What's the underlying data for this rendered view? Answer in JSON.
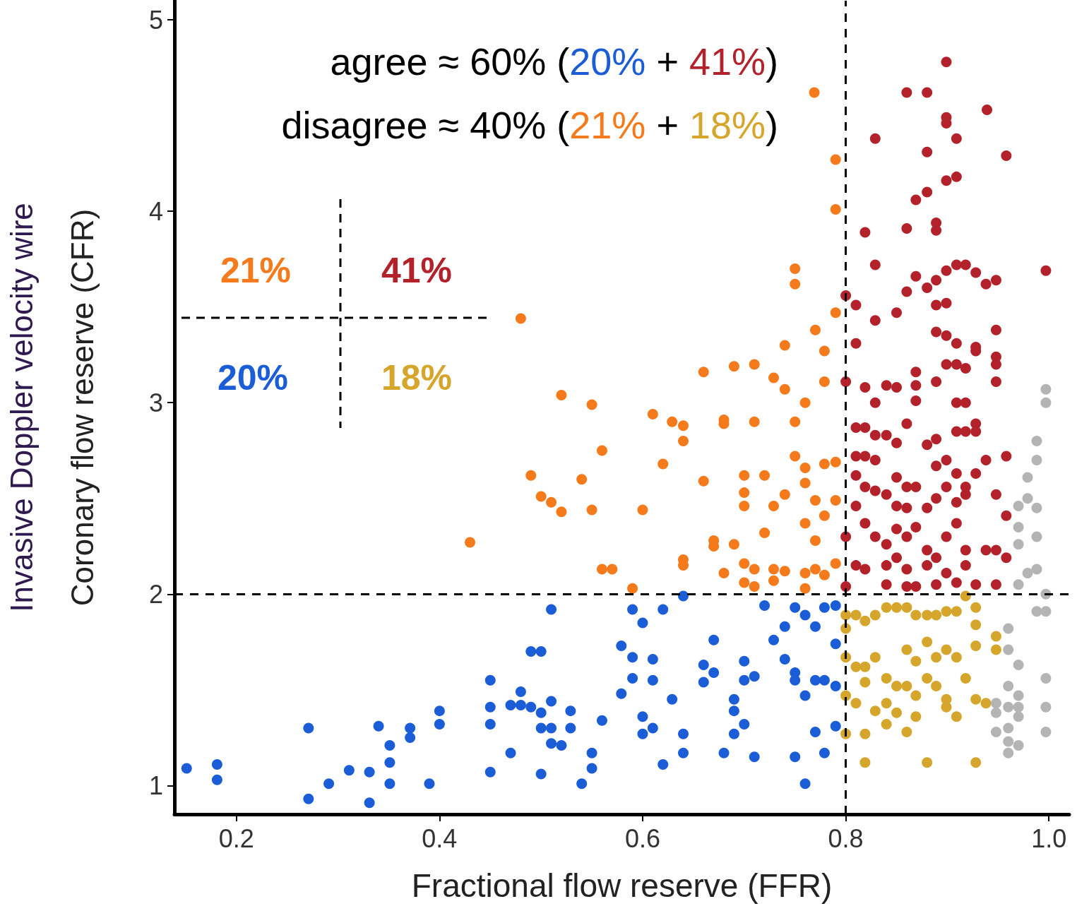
{
  "chart_data": {
    "type": "scatter",
    "xlabel": "Fractional flow reserve (FFR)",
    "ylabel": "Invasive Doppler velocity wire\nCoronary flow reserve (CFR)",
    "xlim": [
      0.139,
      1.02
    ],
    "ylim": [
      0.85,
      5.1
    ],
    "xticks": [
      0.2,
      0.4,
      0.6,
      {
        "value": 1,
        "label": "1.0"
      },
      0.8
    ],
    "yticks": [
      1,
      2,
      3,
      4,
      5
    ],
    "grid": false,
    "marker": "circle",
    "ref_lines": [
      {
        "axis": "x",
        "value": 0.8,
        "label": null,
        "color": "#000000",
        "line_style": "dashed"
      },
      {
        "axis": "y",
        "value": 2,
        "label": null,
        "color": "#000000",
        "line_style": "dashed"
      }
    ],
    "annotations": [
      "agree ≈ 60% (20% + 41%)",
      "disagree ≈ 40% (21% + 18%)",
      "21%",
      "41%",
      "20%",
      "18%"
    ],
    "series": [
      {
        "color": "#1a5dd6",
        "x": [
          0.151,
          0.181,
          0.181,
          0.271,
          0.271,
          0.291,
          0.311,
          0.331,
          0.331,
          0.34,
          0.351,
          0.351,
          0.351,
          0.371,
          0.371,
          0.39,
          0.4,
          0.4,
          0.45,
          0.45,
          0.45,
          0.45,
          0.47,
          0.47,
          0.48,
          0.48,
          0.49,
          0.49,
          0.5,
          0.5,
          0.5,
          0.5,
          0.51,
          0.51,
          0.51,
          0.51,
          0.52,
          0.529,
          0.529,
          0.54,
          0.55,
          0.55,
          0.56,
          0.579,
          0.579,
          0.59,
          0.59,
          0.59,
          0.6,
          0.6,
          0.6,
          0.61,
          0.61,
          0.61,
          0.62,
          0.62,
          0.629,
          0.64,
          0.64,
          0.64,
          0.66,
          0.66,
          0.67,
          0.67,
          0.68,
          0.69,
          0.69,
          0.69,
          0.7,
          0.7,
          0.7,
          0.71,
          0.71,
          0.72,
          0.729,
          0.74,
          0.74,
          0.75,
          0.75,
          0.75,
          0.76,
          0.76,
          0.76,
          0.77,
          0.77,
          0.77,
          0.779,
          0.779,
          0.779,
          0.79,
          0.79,
          0.79,
          0.79,
          0.75
        ],
        "values": [
          1.09,
          1.11,
          1.03,
          1.3,
          0.93,
          1.01,
          1.08,
          1.07,
          0.91,
          1.31,
          1.21,
          1.12,
          1.01,
          1.3,
          1.25,
          1.01,
          1.39,
          1.32,
          1.55,
          1.41,
          1.32,
          1.07,
          1.17,
          1.42,
          1.49,
          1.42,
          1.41,
          1.7,
          1.7,
          1.38,
          1.3,
          1.06,
          1.44,
          1.3,
          1.22,
          1.92,
          1.21,
          1.39,
          1.3,
          1.01,
          1.17,
          1.09,
          1.34,
          1.48,
          1.73,
          1.92,
          1.67,
          1.56,
          1.85,
          1.36,
          1.27,
          1.3,
          1.66,
          1.55,
          1.92,
          1.11,
          1.45,
          1.17,
          1.27,
          1.99,
          1.63,
          1.54,
          1.76,
          1.59,
          1.17,
          1.45,
          1.39,
          1.27,
          1.65,
          1.55,
          1.32,
          1.15,
          1.57,
          1.94,
          1.76,
          1.83,
          1.66,
          1.59,
          1.55,
          1.15,
          1.01,
          1.47,
          1.89,
          1.55,
          1.28,
          1.83,
          1.55,
          1.17,
          1.93,
          1.52,
          1.31,
          1.74,
          1.94,
          1.93
        ]
      },
      {
        "color": "#f57a1b",
        "x": [
          0.48,
          0.43,
          0.49,
          0.5,
          0.51,
          0.52,
          0.52,
          0.54,
          0.55,
          0.55,
          0.56,
          0.56,
          0.57,
          0.59,
          0.6,
          0.61,
          0.62,
          0.629,
          0.64,
          0.64,
          0.64,
          0.64,
          0.66,
          0.66,
          0.67,
          0.67,
          0.68,
          0.68,
          0.68,
          0.69,
          0.69,
          0.7,
          0.7,
          0.7,
          0.7,
          0.7,
          0.71,
          0.71,
          0.71,
          0.71,
          0.72,
          0.72,
          0.729,
          0.729,
          0.729,
          0.729,
          0.74,
          0.74,
          0.74,
          0.74,
          0.75,
          0.75,
          0.75,
          0.75,
          0.76,
          0.76,
          0.76,
          0.76,
          0.76,
          0.77,
          0.77,
          0.77,
          0.77,
          0.779,
          0.779,
          0.779,
          0.779,
          0.779,
          0.79,
          0.79,
          0.79,
          0.79,
          0.79,
          0.79,
          0.769,
          0.76
        ],
        "values": [
          3.44,
          2.27,
          2.62,
          2.51,
          2.48,
          2.43,
          3.04,
          2.6,
          2.99,
          2.44,
          2.75,
          2.13,
          2.13,
          2.03,
          2.44,
          2.94,
          2.68,
          2.9,
          2.88,
          2.8,
          2.18,
          2.15,
          3.16,
          2.59,
          2.28,
          2.25,
          2.91,
          2.89,
          2.11,
          3.19,
          2.26,
          2.62,
          2.53,
          2.46,
          2.16,
          2.06,
          3.2,
          2.9,
          2.13,
          2.04,
          2.62,
          2.32,
          3.13,
          2.46,
          2.13,
          2.07,
          3.3,
          3.07,
          2.52,
          2.12,
          2.9,
          2.72,
          3.62,
          3.7,
          2.66,
          2.58,
          2.37,
          2.11,
          2.03,
          3.38,
          2.49,
          2.28,
          2.13,
          3.27,
          3.11,
          2.68,
          2.41,
          2.1,
          3.47,
          4.01,
          4.27,
          2.69,
          2.49,
          2.16,
          4.62,
          3.0
        ]
      },
      {
        "color": "#b3222a",
        "x": [
          0.899,
          0.86,
          0.88,
          0.829,
          0.899,
          0.899,
          0.939,
          0.88,
          0.909,
          0.958,
          0.819,
          0.86,
          0.889,
          0.889,
          0.869,
          0.88,
          0.899,
          0.909,
          0.829,
          0.8,
          0.81,
          0.829,
          0.85,
          0.869,
          0.88,
          0.889,
          0.899,
          0.909,
          0.918,
          0.928,
          0.938,
          0.948,
          0.997,
          0.948,
          0.86,
          0.889,
          0.899,
          0.889,
          0.899,
          0.909,
          0.928,
          0.928,
          0.948,
          0.948,
          0.948,
          0.81,
          0.8,
          0.819,
          0.84,
          0.85,
          0.829,
          0.869,
          0.869,
          0.869,
          0.899,
          0.909,
          0.918,
          0.889,
          0.909,
          0.918,
          0.928,
          0.909,
          0.918,
          0.928,
          0.81,
          0.819,
          0.829,
          0.84,
          0.85,
          0.86,
          0.889,
          0.88,
          0.81,
          0.819,
          0.829,
          0.81,
          0.819,
          0.829,
          0.85,
          0.86,
          0.869,
          0.889,
          0.899,
          0.909,
          0.899,
          0.918,
          0.928,
          0.938,
          0.958,
          0.81,
          0.819,
          0.84,
          0.85,
          0.86,
          0.88,
          0.889,
          0.909,
          0.918,
          0.948,
          0.958,
          0.8,
          0.81,
          0.829,
          0.84,
          0.85,
          0.86,
          0.869,
          0.88,
          0.889,
          0.899,
          0.909,
          0.918,
          0.938,
          0.948,
          0.958,
          0.819,
          0.84,
          0.86,
          0.88,
          0.899,
          0.918,
          0.8,
          0.84,
          0.86,
          0.869,
          0.889,
          0.909,
          0.928,
          0.948,
          0.85
        ],
        "values": [
          4.78,
          4.62,
          4.62,
          4.38,
          4.49,
          4.46,
          4.53,
          4.31,
          4.38,
          4.29,
          3.89,
          3.91,
          3.94,
          3.9,
          4.06,
          4.1,
          4.16,
          4.18,
          3.72,
          3.56,
          3.51,
          3.43,
          3.47,
          3.66,
          3.6,
          3.64,
          3.69,
          3.72,
          3.72,
          3.68,
          3.62,
          3.64,
          3.69,
          3.38,
          3.58,
          3.51,
          3.52,
          3.37,
          3.35,
          3.31,
          3.29,
          3.27,
          3.24,
          3.2,
          3.11,
          3.31,
          3.11,
          3.08,
          3.09,
          3.08,
          3.0,
          3.16,
          3.09,
          3.01,
          3.2,
          3.2,
          3.18,
          3.11,
          3.0,
          3.0,
          2.89,
          2.85,
          2.85,
          2.85,
          2.87,
          2.87,
          2.83,
          2.83,
          2.79,
          2.89,
          2.81,
          2.78,
          2.72,
          2.72,
          2.7,
          2.62,
          2.56,
          2.54,
          2.61,
          2.56,
          2.56,
          2.67,
          2.7,
          2.63,
          2.56,
          2.56,
          2.63,
          2.7,
          2.72,
          2.46,
          2.37,
          2.52,
          2.46,
          2.45,
          2.45,
          2.5,
          2.48,
          2.52,
          2.52,
          2.41,
          2.3,
          2.15,
          2.3,
          2.26,
          2.34,
          2.3,
          2.35,
          2.23,
          2.19,
          2.3,
          2.37,
          2.23,
          2.23,
          2.23,
          2.19,
          2.13,
          2.15,
          2.13,
          2.15,
          2.11,
          2.15,
          2.04,
          2.05,
          2.04,
          2.04,
          2.05,
          2.06,
          2.05,
          2.05,
          2.19
        ]
      },
      {
        "color": "#d6a52b",
        "x": [
          0.8,
          0.8,
          0.81,
          0.819,
          0.829,
          0.84,
          0.85,
          0.86,
          0.869,
          0.88,
          0.889,
          0.899,
          0.909,
          0.918,
          0.928,
          0.928,
          0.8,
          0.81,
          0.819,
          0.829,
          0.84,
          0.85,
          0.86,
          0.869,
          0.88,
          0.889,
          0.899,
          0.909,
          0.928,
          0.948,
          0.948,
          0.8,
          0.81,
          0.819,
          0.829,
          0.84,
          0.85,
          0.86,
          0.869,
          0.88,
          0.889,
          0.899,
          0.909,
          0.918,
          0.928,
          0.938,
          0.8,
          0.819,
          0.819,
          0.86,
          0.869,
          0.899,
          0.928,
          0.88,
          0.84
        ],
        "values": [
          1.89,
          1.82,
          1.89,
          1.86,
          1.89,
          1.93,
          1.93,
          1.93,
          1.89,
          1.89,
          1.89,
          1.91,
          1.91,
          1.99,
          1.93,
          1.84,
          1.67,
          1.62,
          1.62,
          1.67,
          1.56,
          1.52,
          1.71,
          1.65,
          1.75,
          1.67,
          1.71,
          1.67,
          1.73,
          1.78,
          1.71,
          1.47,
          1.43,
          1.54,
          1.39,
          1.43,
          1.38,
          1.52,
          1.47,
          1.56,
          1.52,
          1.45,
          1.36,
          1.56,
          1.45,
          1.43,
          1.27,
          1.27,
          1.12,
          1.28,
          1.36,
          1.41,
          1.12,
          1.12,
          1.32
        ]
      },
      {
        "color": "#b4b4b4",
        "x": [
          0.997,
          0.997,
          0.988,
          0.988,
          0.979,
          0.97,
          0.979,
          0.988,
          0.97,
          0.988,
          0.97,
          0.979,
          0.97,
          0.988,
          0.997,
          0.997,
          0.988,
          0.96,
          0.96,
          0.97,
          0.96,
          0.97,
          0.96,
          0.97,
          0.97,
          0.948,
          0.948,
          0.97,
          0.96,
          0.997,
          0.997,
          0.997,
          0.96,
          0.96,
          0.948
        ],
        "values": [
          3.07,
          3.0,
          2.8,
          2.7,
          2.61,
          2.46,
          2.5,
          2.45,
          2.35,
          2.3,
          2.26,
          2.11,
          2.05,
          2.13,
          2.0,
          1.91,
          1.91,
          1.82,
          1.71,
          1.63,
          1.52,
          1.47,
          1.41,
          1.41,
          1.36,
          1.43,
          1.28,
          1.21,
          1.17,
          1.56,
          1.41,
          1.28,
          1.3,
          1.23,
          1.38
        ]
      }
    ]
  }
}
